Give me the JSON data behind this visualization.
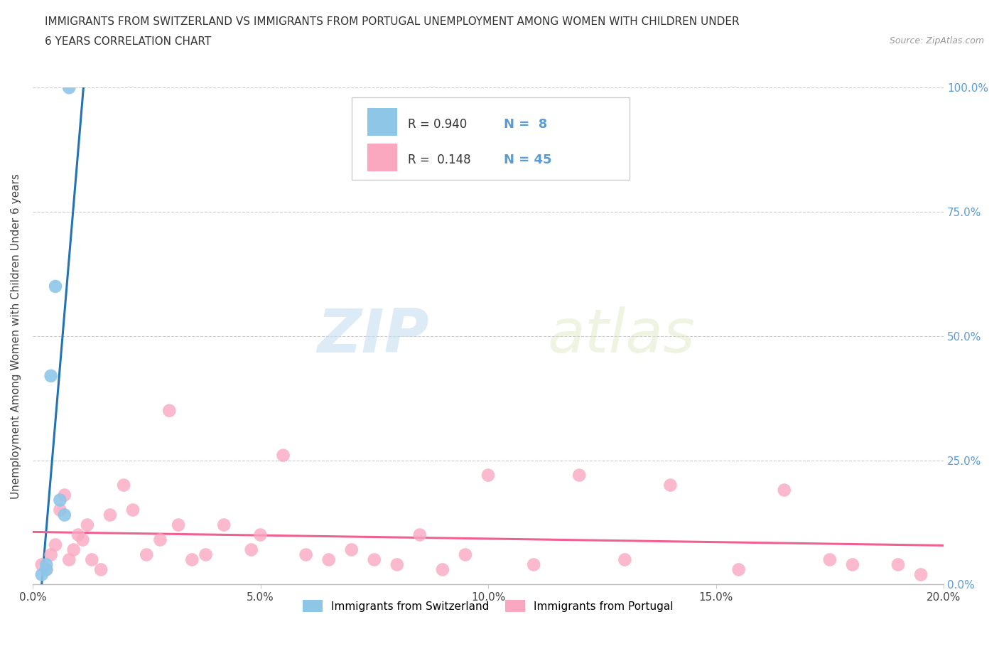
{
  "title_line1": "IMMIGRANTS FROM SWITZERLAND VS IMMIGRANTS FROM PORTUGAL UNEMPLOYMENT AMONG WOMEN WITH CHILDREN UNDER",
  "title_line2": "6 YEARS CORRELATION CHART",
  "source": "Source: ZipAtlas.com",
  "ylabel": "Unemployment Among Women with Children Under 6 years",
  "r_switzerland": 0.94,
  "n_switzerland": 8,
  "r_portugal": 0.148,
  "n_portugal": 45,
  "xlim": [
    0.0,
    0.2
  ],
  "ylim": [
    0.0,
    1.0
  ],
  "xticks": [
    0.0,
    0.05,
    0.1,
    0.15,
    0.2
  ],
  "xticklabels": [
    "0.0%",
    "5.0%",
    "10.0%",
    "15.0%",
    "20.0%"
  ],
  "yticks": [
    0.0,
    0.25,
    0.5,
    0.75,
    1.0
  ],
  "yticklabels": [
    "0.0%",
    "25.0%",
    "50.0%",
    "75.0%",
    "100.0%"
  ],
  "color_swiss": "#8ec6e8",
  "color_portugal": "#f9a8c0",
  "color_swiss_line": "#2272b5",
  "color_portugal_line": "#f06090",
  "color_tick_blue": "#5b9bd5",
  "background_color": "#ffffff",
  "watermark_zip": "ZIP",
  "watermark_atlas": "atlas",
  "legend_label_swiss": "Immigrants from Switzerland",
  "legend_label_portugal": "Immigrants from Portugal",
  "swiss_points_x": [
    0.002,
    0.003,
    0.003,
    0.004,
    0.005,
    0.006,
    0.007,
    0.008
  ],
  "swiss_points_y": [
    0.02,
    0.03,
    0.04,
    0.42,
    0.6,
    0.17,
    0.14,
    1.0
  ],
  "portugal_points_x": [
    0.002,
    0.003,
    0.004,
    0.005,
    0.006,
    0.007,
    0.008,
    0.009,
    0.01,
    0.011,
    0.012,
    0.013,
    0.015,
    0.017,
    0.02,
    0.022,
    0.025,
    0.028,
    0.03,
    0.032,
    0.035,
    0.038,
    0.042,
    0.048,
    0.05,
    0.055,
    0.06,
    0.065,
    0.07,
    0.075,
    0.08,
    0.085,
    0.09,
    0.095,
    0.1,
    0.11,
    0.12,
    0.13,
    0.14,
    0.155,
    0.165,
    0.175,
    0.18,
    0.19,
    0.195
  ],
  "portugal_points_y": [
    0.04,
    0.03,
    0.06,
    0.08,
    0.15,
    0.18,
    0.05,
    0.07,
    0.1,
    0.09,
    0.12,
    0.05,
    0.03,
    0.14,
    0.2,
    0.15,
    0.06,
    0.09,
    0.35,
    0.12,
    0.05,
    0.06,
    0.12,
    0.07,
    0.1,
    0.26,
    0.06,
    0.05,
    0.07,
    0.05,
    0.04,
    0.1,
    0.03,
    0.06,
    0.22,
    0.04,
    0.22,
    0.05,
    0.2,
    0.03,
    0.19,
    0.05,
    0.04,
    0.04,
    0.02
  ]
}
